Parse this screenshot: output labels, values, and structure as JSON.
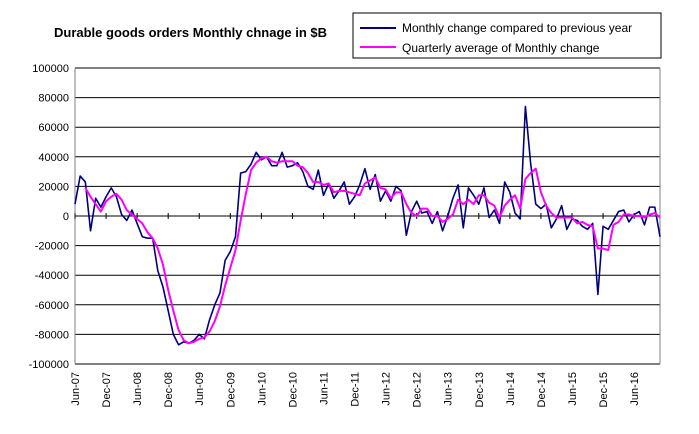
{
  "chart_data": {
    "type": "line",
    "title": "Durable goods orders Monthly chnage in $B",
    "xlabel": "",
    "ylabel": "",
    "ylim": [
      -100000,
      100000
    ],
    "yticks": [
      100000,
      80000,
      60000,
      40000,
      20000,
      0,
      -20000,
      -40000,
      -60000,
      -80000,
      -100000
    ],
    "ytick_labels": [
      "100000",
      "80000",
      "60000",
      "40000",
      "20000",
      "0",
      "-20000",
      "-40000",
      "-60000",
      "-80000",
      "-100000"
    ],
    "xtick_labels": [
      "Jun-07",
      "Dec-07",
      "Jun-08",
      "Dec-08",
      "Jun-09",
      "Dec-09",
      "Jun-10",
      "Dec-10",
      "Jun-11",
      "Dec-11",
      "Jun-12",
      "Dec-12",
      "Jun-13",
      "Dec-13",
      "Jun-14",
      "Dec-14",
      "Jun-15",
      "Dec-15",
      "Jun-16"
    ],
    "grid": "horizontal",
    "legend_position": "top-right",
    "colors": {
      "monthly": "#000080",
      "quarterly": "#ff00ff",
      "grid": "#000000",
      "plot_border": "#808080"
    },
    "series": [
      {
        "name": "Monthly change compared to previous year",
        "values": [
          8000,
          27000,
          23000,
          -10000,
          12000,
          6000,
          13000,
          19000,
          13000,
          1000,
          -3000,
          4000,
          -5000,
          -14000,
          -15000,
          -15000,
          -37000,
          -48000,
          -64000,
          -80000,
          -87000,
          -85000,
          -86000,
          -84000,
          -80000,
          -83000,
          -70000,
          -60000,
          -52000,
          -30000,
          -24000,
          -14000,
          29000,
          30000,
          35000,
          43000,
          38000,
          40000,
          34000,
          34000,
          43000,
          33000,
          34000,
          36000,
          30000,
          20000,
          18000,
          31000,
          14000,
          22000,
          12000,
          17000,
          23000,
          8000,
          13000,
          21000,
          32000,
          18000,
          28000,
          10000,
          17000,
          10000,
          20000,
          17000,
          -13000,
          3000,
          10000,
          2000,
          3000,
          -5000,
          3000,
          -10000,
          0,
          12000,
          21000,
          -8000,
          19000,
          14000,
          8000,
          19000,
          -1000,
          4000,
          -5000,
          23000,
          16000,
          2000,
          -2000,
          74000,
          36000,
          8000,
          5000,
          8000,
          -8000,
          -2000,
          7000,
          -9000,
          -2000,
          -3000,
          -7000,
          -9000,
          -5000,
          -53000,
          -7000,
          -9000,
          -3000,
          3000,
          4000,
          -4000,
          1000,
          3000,
          -6000,
          6000,
          6000,
          -14000
        ]
      },
      {
        "name": "Quarterly average of Monthly change",
        "values": [
          null,
          null,
          19000,
          13000,
          8000,
          3000,
          10000,
          13000,
          15000,
          11000,
          4000,
          1000,
          -2000,
          -5000,
          -11000,
          -15000,
          -22000,
          -33000,
          -50000,
          -64000,
          -77000,
          -84000,
          -86000,
          -85000,
          -83000,
          -82000,
          -78000,
          -71000,
          -61000,
          -47000,
          -35000,
          -23000,
          -3000,
          15000,
          31000,
          36000,
          39000,
          40000,
          37000,
          36000,
          37000,
          37000,
          37000,
          34000,
          33000,
          29000,
          23000,
          23000,
          21000,
          22000,
          16000,
          17000,
          17000,
          16000,
          15000,
          14000,
          22000,
          24000,
          26000,
          19000,
          18000,
          12000,
          16000,
          16000,
          8000,
          2000,
          0,
          5000,
          5000,
          0,
          0,
          -4000,
          -2000,
          1000,
          11000,
          8000,
          11000,
          8000,
          14000,
          14000,
          9000,
          7000,
          -1000,
          7000,
          11000,
          14000,
          5000,
          25000,
          29000,
          32000,
          16000,
          7000,
          2000,
          -1000,
          -1000,
          -1000,
          -1000,
          -5000,
          -4000,
          -6000,
          -7000,
          -22000,
          -22000,
          -23000,
          -6000,
          -4000,
          1000,
          1000,
          0,
          0,
          -1000,
          1000,
          2000,
          -1000
        ]
      }
    ]
  }
}
